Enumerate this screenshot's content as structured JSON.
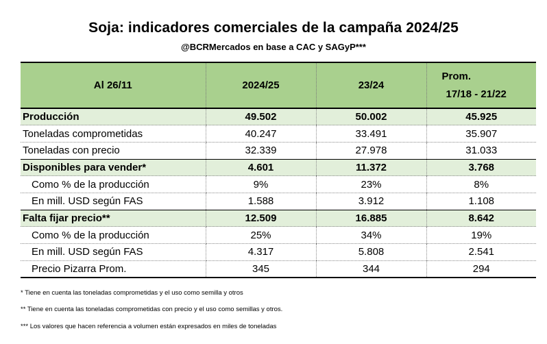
{
  "title": "Soja: indicadores comerciales de la campaña 2024/25",
  "subtitle": "@BCRMercados en base a CAC y SAGyP***",
  "table": {
    "headers": {
      "label": "Al 26/11",
      "col1": "2024/25",
      "col2": "23/24",
      "col3_line1": "Prom.",
      "col3_line2": "17/18 - 21/22"
    },
    "rows": [
      {
        "label": "Producción",
        "v1": "49.502",
        "v2": "50.002",
        "v3": "45.925"
      },
      {
        "label": "Toneladas comprometidas",
        "v1": "40.247",
        "v2": "33.491",
        "v3": "35.907"
      },
      {
        "label": "Toneladas con precio",
        "v1": "32.339",
        "v2": "27.978",
        "v3": "31.033"
      },
      {
        "label": "Disponibles para vender*",
        "v1": "4.601",
        "v2": "11.372",
        "v3": "3.768"
      },
      {
        "label": "Como % de la producción",
        "v1": "9%",
        "v2": "23%",
        "v3": "8%"
      },
      {
        "label": "En mill. USD según FAS",
        "v1": "1.588",
        "v2": "3.912",
        "v3": "1.108"
      },
      {
        "label": "Falta fijar precio**",
        "v1": "12.509",
        "v2": "16.885",
        "v3": "8.642"
      },
      {
        "label": "Como % de la producción",
        "v1": "25%",
        "v2": "34%",
        "v3": "19%"
      },
      {
        "label": "En mill. USD según FAS",
        "v1": "4.317",
        "v2": "5.808",
        "v3": "2.541"
      },
      {
        "label": "Precio Pizarra Prom.",
        "v1": "345",
        "v2": "344",
        "v3": "294"
      }
    ]
  },
  "notes": [
    "* Tiene en cuenta las toneladas comprometidas y el uso como semilla y otros",
    "** Tiene en cuenta las toneladas comprometidas con precio y el uso como semillas y otros.",
    "*** Los valores que hacen referencia a volumen están expresados en miles de toneladas"
  ],
  "colors": {
    "header_fill": "#a9d08e",
    "bold_row_fill": "#e2efda"
  }
}
